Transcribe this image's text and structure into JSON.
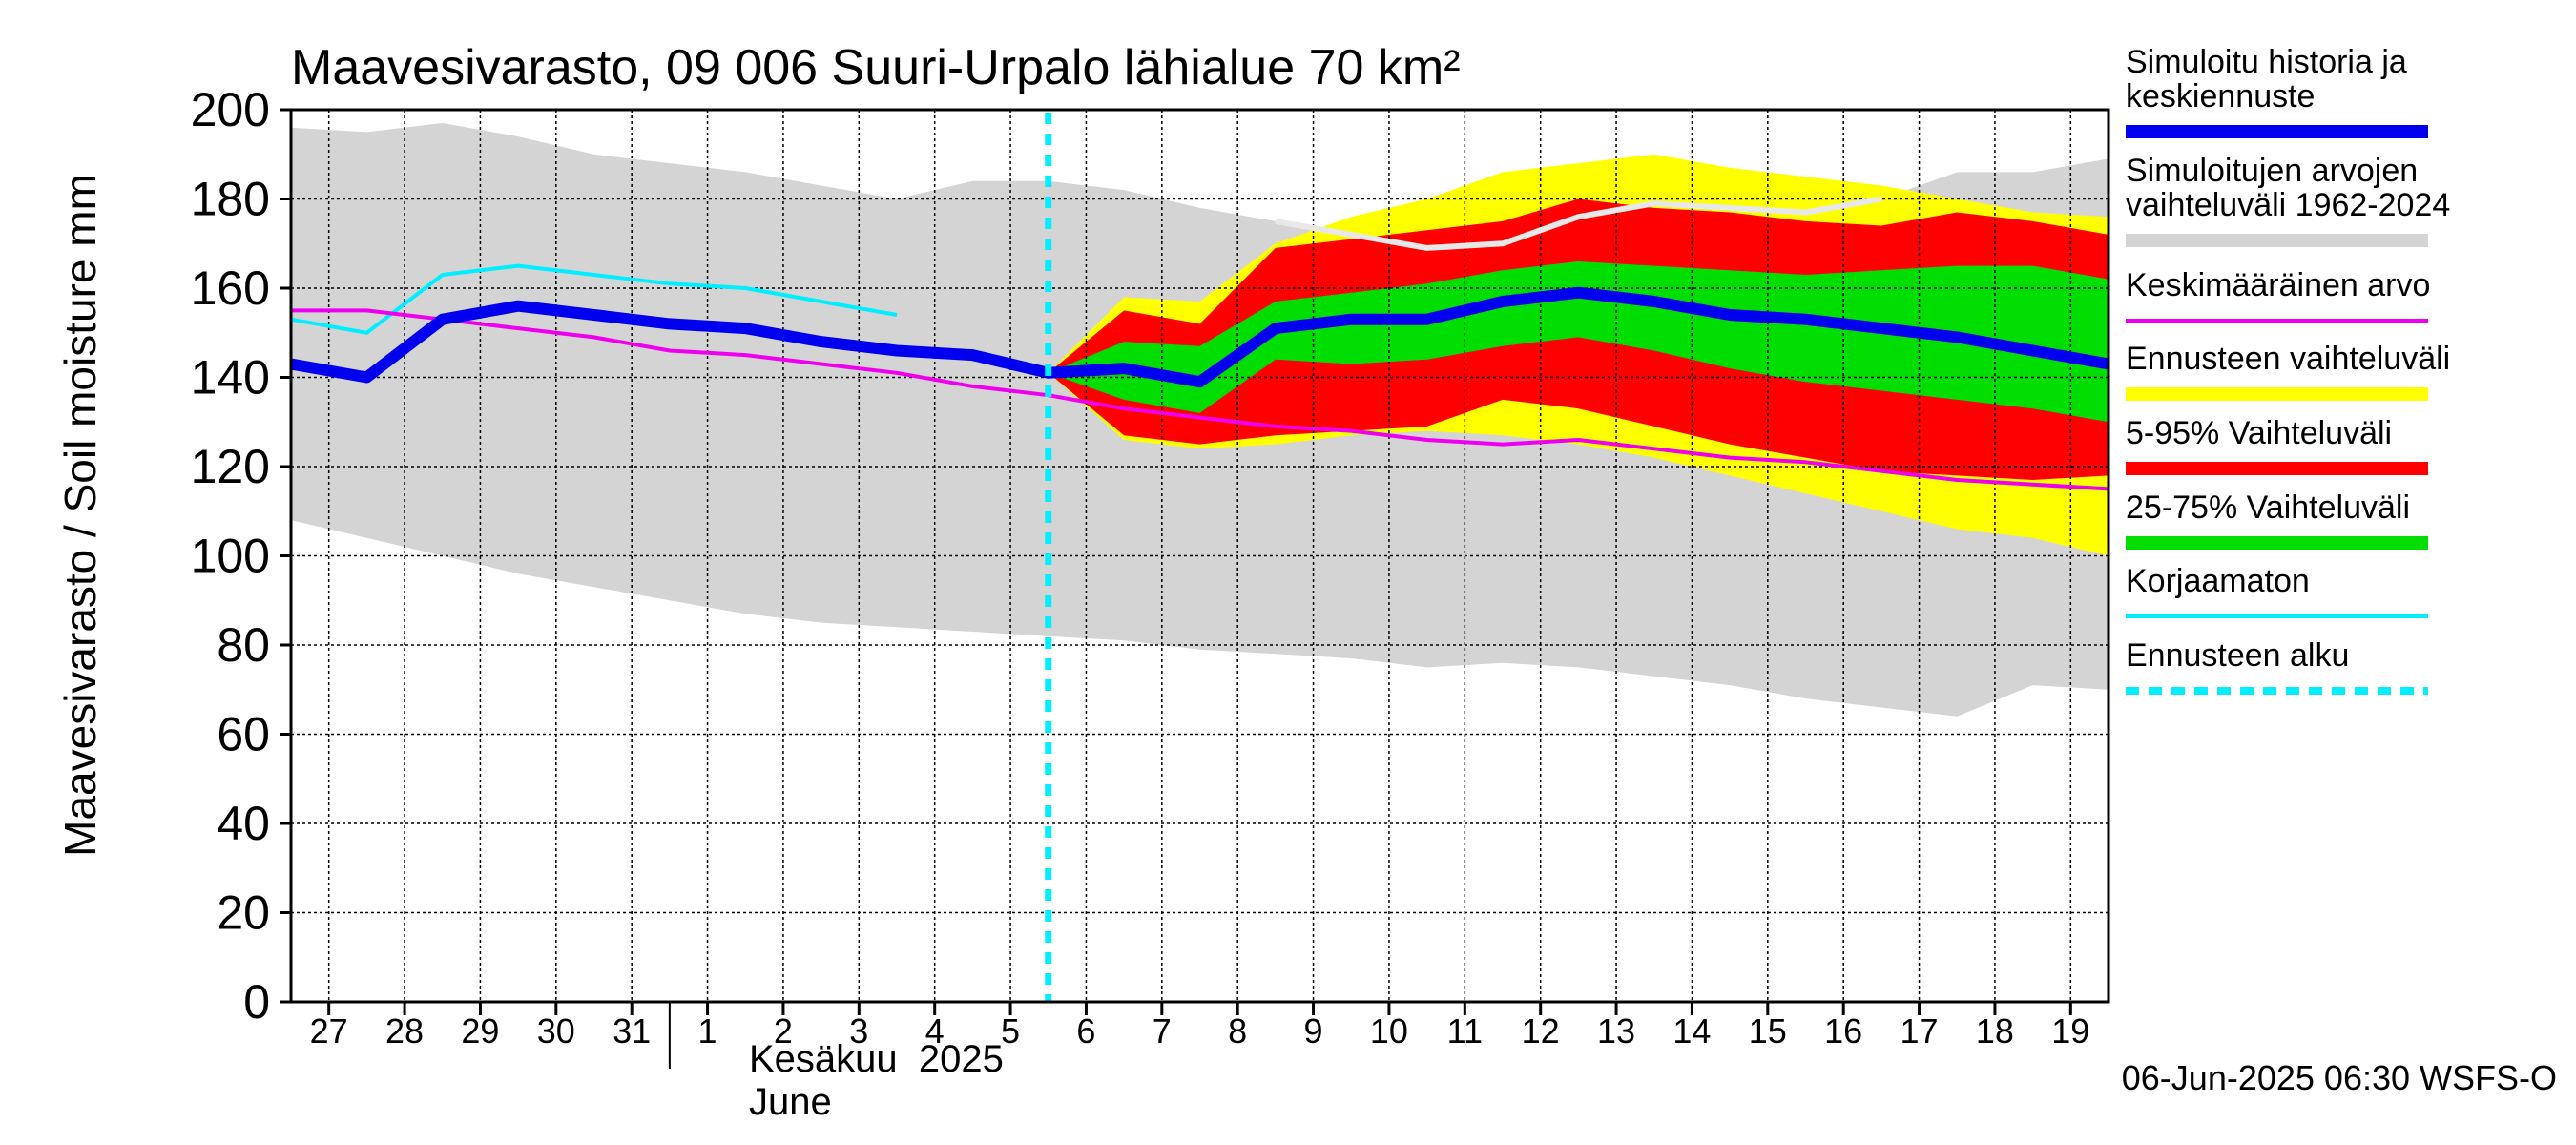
{
  "chart_data": {
    "type": "area",
    "title": "Maavesivarasto, 09 006 Suuri-Urpalo lähialue 70 km²",
    "ylabel": "Maavesivarasto / Soil moisture   mm",
    "ylim": [
      0,
      200
    ],
    "yticks": [
      0,
      20,
      40,
      60,
      80,
      100,
      120,
      140,
      160,
      180,
      200
    ],
    "x_start_day": 26.5,
    "x_end_day": 50.5,
    "day_labels": [
      "27",
      "28",
      "29",
      "30",
      "31",
      "1",
      "2",
      "3",
      "4",
      "5",
      "6",
      "7",
      "8",
      "9",
      "10",
      "11",
      "12",
      "13",
      "14",
      "15",
      "16",
      "17",
      "18",
      "19"
    ],
    "month_label_fi": "Kesäkuu  2025",
    "month_label_en": "June",
    "month_start_day": 31.5,
    "forecast_start_day": 36.5,
    "footer": "06-Jun-2025 06:30 WSFS-O",
    "colors": {
      "history_range": "#d4d4d4",
      "forecast_range": "#ffff00",
      "p5_95": "#ff0000",
      "p25_75": "#00dd00",
      "median": "#0000ee",
      "mean": "#ee00ee",
      "uncorrected": "#00eeff",
      "forecast_start": "#00eeff",
      "grid": "#000000"
    },
    "series": {
      "history_max": {
        "x": [
          26.5,
          27.5,
          28.5,
          29.5,
          30.5,
          31.5,
          32.5,
          33.5,
          34.5,
          35.5,
          36.5,
          37.5,
          38.5,
          39.5,
          40.5,
          41.5,
          42.5,
          43.5,
          44.5,
          45.5,
          46.5,
          47.5,
          48.5,
          49.5,
          50.5
        ],
        "y": [
          196,
          195,
          197,
          194,
          190,
          188,
          186,
          183,
          180,
          184,
          184,
          182,
          178,
          175,
          172,
          168,
          170,
          176,
          179,
          177,
          176,
          180,
          186,
          186,
          189
        ]
      },
      "history_min": {
        "x": [
          26.5,
          27.5,
          28.5,
          29.5,
          30.5,
          31.5,
          32.5,
          33.5,
          34.5,
          35.5,
          36.5,
          37.5,
          38.5,
          39.5,
          40.5,
          41.5,
          42.5,
          43.5,
          44.5,
          45.5,
          46.5,
          47.5,
          48.5,
          49.5,
          50.5
        ],
        "y": [
          108,
          104,
          100,
          96,
          93,
          90,
          87,
          85,
          84,
          83,
          82,
          81,
          79,
          78,
          77,
          75,
          76,
          75,
          73,
          71,
          68,
          66,
          64,
          71,
          70
        ]
      },
      "forecast_max": {
        "x": [
          36.5,
          37.5,
          38.5,
          39.5,
          40.5,
          41.5,
          42.5,
          43.5,
          44.5,
          45.5,
          46.5,
          47.5,
          48.5,
          49.5,
          50.5
        ],
        "y": [
          141,
          158,
          157,
          170,
          176,
          180,
          186,
          188,
          190,
          187,
          185,
          183,
          180,
          177,
          176
        ]
      },
      "forecast_min": {
        "x": [
          36.5,
          37.5,
          38.5,
          39.5,
          40.5,
          41.5,
          42.5,
          43.5,
          44.5,
          45.5,
          46.5,
          47.5,
          48.5,
          49.5,
          50.5
        ],
        "y": [
          141,
          126,
          124,
          125,
          127,
          128,
          127,
          125,
          122,
          118,
          114,
          110,
          106,
          104,
          100
        ]
      },
      "p95": {
        "x": [
          36.5,
          37.5,
          38.5,
          39.5,
          40.5,
          41.5,
          42.5,
          43.5,
          44.5,
          45.5,
          46.5,
          47.5,
          48.5,
          49.5,
          50.5
        ],
        "y": [
          141,
          155,
          152,
          169,
          171,
          173,
          175,
          180,
          178,
          177,
          175,
          174,
          177,
          175,
          172
        ]
      },
      "p5": {
        "x": [
          36.5,
          37.5,
          38.5,
          39.5,
          40.5,
          41.5,
          42.5,
          43.5,
          44.5,
          45.5,
          46.5,
          47.5,
          48.5,
          49.5,
          50.5
        ],
        "y": [
          141,
          127,
          125,
          127,
          128,
          129,
          135,
          133,
          129,
          125,
          122,
          119,
          118,
          117,
          118
        ]
      },
      "p75": {
        "x": [
          36.5,
          37.5,
          38.5,
          39.5,
          40.5,
          41.5,
          42.5,
          43.5,
          44.5,
          45.5,
          46.5,
          47.5,
          48.5,
          49.5,
          50.5
        ],
        "y": [
          141,
          148,
          147,
          157,
          159,
          161,
          164,
          166,
          165,
          164,
          163,
          164,
          165,
          165,
          162
        ]
      },
      "p25": {
        "x": [
          36.5,
          37.5,
          38.5,
          39.5,
          40.5,
          41.5,
          42.5,
          43.5,
          44.5,
          45.5,
          46.5,
          47.5,
          48.5,
          49.5,
          50.5
        ],
        "y": [
          141,
          135,
          132,
          144,
          143,
          144,
          147,
          149,
          146,
          142,
          139,
          137,
          135,
          133,
          130
        ]
      },
      "median": {
        "x": [
          26.5,
          27.5,
          28.5,
          29.5,
          30.5,
          31.5,
          32.5,
          33.5,
          34.5,
          35.5,
          36.5,
          37.5,
          38.5,
          39.5,
          40.5,
          41.5,
          42.5,
          43.5,
          44.5,
          45.5,
          46.5,
          47.5,
          48.5,
          49.5,
          50.5
        ],
        "y": [
          143,
          140,
          153,
          156,
          154,
          152,
          151,
          148,
          146,
          145,
          141,
          142,
          139,
          151,
          153,
          153,
          157,
          159,
          157,
          154,
          153,
          151,
          149,
          146,
          143
        ]
      },
      "mean": {
        "x": [
          26.5,
          27.5,
          28.5,
          29.5,
          30.5,
          31.5,
          32.5,
          33.5,
          34.5,
          35.5,
          36.5,
          37.5,
          38.5,
          39.5,
          40.5,
          41.5,
          42.5,
          43.5,
          44.5,
          45.5,
          46.5,
          47.5,
          48.5,
          49.5,
          50.5
        ],
        "y": [
          155,
          155,
          153,
          151,
          149,
          146,
          145,
          143,
          141,
          138,
          136,
          133,
          131,
          129,
          128,
          126,
          125,
          126,
          124,
          122,
          121,
          119,
          117,
          116,
          115
        ]
      },
      "historical_max_line": {
        "x": [
          39.5,
          40.5,
          41.5,
          42.5,
          43.5,
          44.5,
          45.5,
          46.5,
          47.5
        ],
        "y": [
          175,
          172,
          169,
          170,
          176,
          179,
          178,
          177,
          180
        ]
      },
      "uncorrected": {
        "x": [
          26.5,
          27.5,
          28.5,
          29.5,
          30.5,
          31.5,
          32.5,
          33.5,
          34.5
        ],
        "y": [
          153,
          150,
          163,
          165,
          163,
          161,
          160,
          157,
          154
        ]
      }
    },
    "legend": [
      {
        "label": "Simuloitu historia ja keskiennuste",
        "lines": [
          "Simuloitu historia ja",
          "keskiennuste"
        ],
        "color": "#0000ee",
        "style": "thick"
      },
      {
        "label": "Simuloitujen arvojen vaihteluväli 1962-2024",
        "lines": [
          "Simuloitujen arvojen",
          "vaihteluväli 1962-2024"
        ],
        "color": "#d4d4d4",
        "style": "thick"
      },
      {
        "label": "Keskimääräinen arvo",
        "lines": [
          "Keskimääräinen arvo"
        ],
        "color": "#ee00ee",
        "style": "thin"
      },
      {
        "label": "Ennusteen vaihteluväli",
        "lines": [
          "Ennusteen vaihteluväli"
        ],
        "color": "#ffff00",
        "style": "thick"
      },
      {
        "label": "5-95% Vaihteluväli",
        "lines": [
          "5-95% Vaihteluväli"
        ],
        "color": "#ff0000",
        "style": "thick"
      },
      {
        "label": "25-75% Vaihteluväli",
        "lines": [
          "25-75% Vaihteluväli"
        ],
        "color": "#00dd00",
        "style": "thick"
      },
      {
        "label": "Korjaamaton",
        "lines": [
          "Korjaamaton"
        ],
        "color": "#00eeff",
        "style": "thin"
      },
      {
        "label": "Ennusteen alku",
        "lines": [
          "Ennusteen alku"
        ],
        "color": "#00eeff",
        "style": "dashed"
      }
    ]
  }
}
